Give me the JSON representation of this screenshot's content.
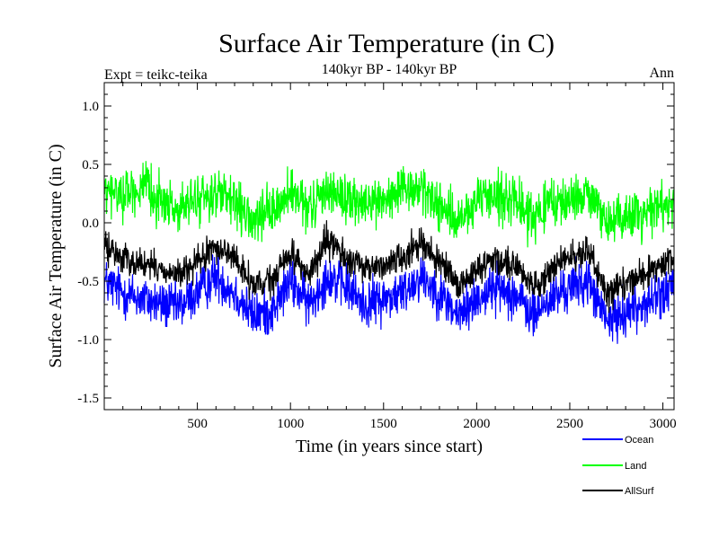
{
  "chart_data": {
    "type": "line",
    "title": "Surface Air Temperature (in C)",
    "subtitle": "140kyr BP - 140kyr BP",
    "left_label": "Expt = teikc-teika",
    "right_label": "Ann",
    "xlabel": "Time (in years since start)",
    "ylabel": "Surface Air Temperature (in C)",
    "xlim": [
      0,
      3060
    ],
    "ylim": [
      -1.6,
      1.2
    ],
    "xticks": [
      500,
      1000,
      1500,
      2000,
      2500,
      3000
    ],
    "xtick_labels": [
      "500",
      "1000",
      "1500",
      "2000",
      "2500",
      "3000"
    ],
    "yticks": [
      1.0,
      0.5,
      0.0,
      -0.5,
      -1.0,
      -1.5
    ],
    "ytick_labels": [
      "1.0",
      "0.5",
      "0.0",
      "-0.5",
      "-1.0",
      "-1.5"
    ],
    "legend_position": "bottom-right",
    "series": [
      {
        "name": "Ocean",
        "color": "#0000ff",
        "x": [
          0,
          100,
          200,
          300,
          400,
          500,
          600,
          700,
          800,
          900,
          1000,
          1100,
          1200,
          1300,
          1400,
          1500,
          1600,
          1700,
          1800,
          1900,
          2000,
          2100,
          2200,
          2300,
          2400,
          2500,
          2600,
          2700,
          2800,
          2900,
          3000,
          3060
        ],
        "values": [
          -0.5,
          -0.6,
          -0.65,
          -0.7,
          -0.72,
          -0.6,
          -0.45,
          -0.6,
          -0.8,
          -0.75,
          -0.5,
          -0.7,
          -0.45,
          -0.55,
          -0.7,
          -0.65,
          -0.6,
          -0.45,
          -0.6,
          -0.8,
          -0.65,
          -0.55,
          -0.6,
          -0.8,
          -0.65,
          -0.55,
          -0.5,
          -0.85,
          -0.75,
          -0.7,
          -0.6,
          -0.55
        ],
        "noise": 0.17
      },
      {
        "name": "Land",
        "color": "#00ff00",
        "x": [
          0,
          100,
          200,
          300,
          400,
          500,
          600,
          700,
          800,
          900,
          1000,
          1100,
          1200,
          1300,
          1400,
          1500,
          1600,
          1700,
          1800,
          1900,
          2000,
          2100,
          2200,
          2300,
          2400,
          2500,
          2600,
          2700,
          2800,
          2900,
          3000,
          3060
        ],
        "values": [
          0.25,
          0.25,
          0.3,
          0.2,
          0.1,
          0.2,
          0.25,
          0.15,
          0.0,
          0.1,
          0.25,
          0.1,
          0.3,
          0.2,
          0.15,
          0.2,
          0.25,
          0.3,
          0.15,
          0.0,
          0.15,
          0.25,
          0.2,
          0.05,
          0.15,
          0.2,
          0.25,
          0.0,
          0.05,
          0.1,
          0.15,
          0.2
        ],
        "noise": 0.17
      },
      {
        "name": "AllSurf",
        "color": "#000000",
        "x": [
          0,
          100,
          200,
          300,
          400,
          500,
          600,
          700,
          800,
          900,
          1000,
          1100,
          1200,
          1300,
          1400,
          1500,
          1600,
          1700,
          1800,
          1900,
          2000,
          2100,
          2200,
          2300,
          2400,
          2500,
          2600,
          2700,
          2800,
          2900,
          3000,
          3060
        ],
        "values": [
          -0.2,
          -0.3,
          -0.35,
          -0.4,
          -0.45,
          -0.35,
          -0.2,
          -0.3,
          -0.55,
          -0.5,
          -0.25,
          -0.45,
          -0.15,
          -0.3,
          -0.4,
          -0.35,
          -0.3,
          -0.15,
          -0.35,
          -0.55,
          -0.4,
          -0.3,
          -0.35,
          -0.55,
          -0.4,
          -0.3,
          -0.25,
          -0.6,
          -0.5,
          -0.45,
          -0.35,
          -0.3
        ],
        "noise": 0.11
      }
    ]
  }
}
